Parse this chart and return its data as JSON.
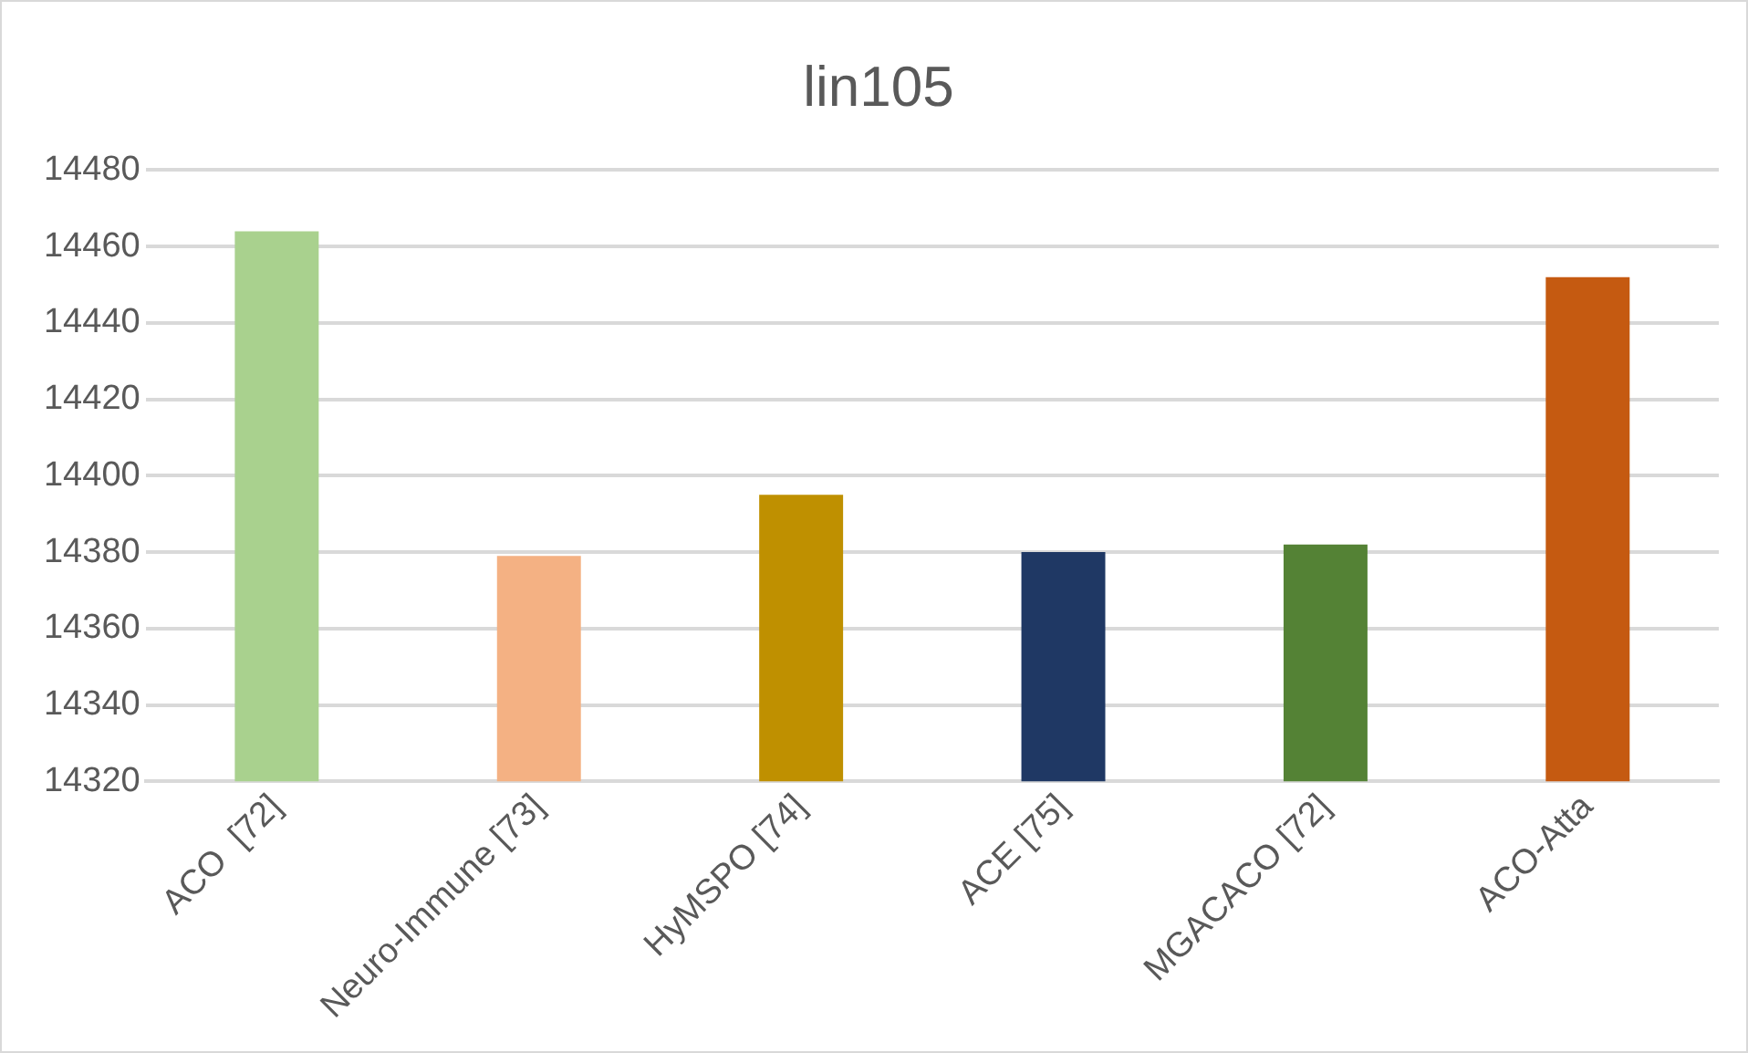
{
  "chart_data": {
    "type": "bar",
    "title": "lin105",
    "categories": [
      "ACO  [72]",
      "Neuro-Immune [73]",
      "HyMSPO [74]",
      "ACE [75]",
      "MGACACO [72]",
      "ACO-Atta"
    ],
    "values": [
      14464,
      14379,
      14395,
      14380,
      14382,
      14452
    ],
    "colors": [
      "#a9d18e",
      "#f4b183",
      "#bf9000",
      "#1f3864",
      "#548235",
      "#c55a11"
    ],
    "ylim": [
      14320,
      14480
    ],
    "yticks": [
      14320,
      14340,
      14360,
      14380,
      14400,
      14420,
      14440,
      14460,
      14480
    ],
    "grid": "y",
    "legend": false
  }
}
